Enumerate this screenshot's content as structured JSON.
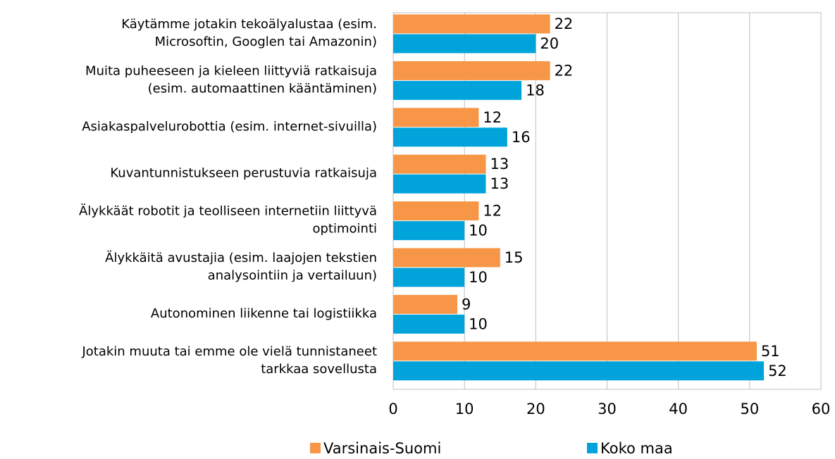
{
  "chart_data": {
    "type": "bar",
    "orientation": "horizontal",
    "categories": [
      [
        "Käytämme jotakin tekoälyalustaa (esim.",
        "Microsoftin, Googlen tai Amazonin)"
      ],
      [
        "Muita puheeseen ja kieleen liittyviä ratkaisuja",
        "(esim. automaattinen kääntäminen)"
      ],
      [
        "Asiakaspalvelurobottia (esim. internet-sivuilla)"
      ],
      [
        "Kuvantunnistukseen perustuvia ratkaisuja"
      ],
      [
        "Älykkäät robotit ja teolliseen internetiin liittyvä",
        "optimointi"
      ],
      [
        "Älykkäitä avustajia (esim. laajojen tekstien",
        "analysointiin ja vertailuun)"
      ],
      [
        "Autonominen liikenne tai logistiikka"
      ],
      [
        "Jotakin muuta tai emme ole vielä tunnistaneet",
        "tarkkaa sovellusta"
      ]
    ],
    "series": [
      {
        "name": "Varsinais-Suomi",
        "color": "#f79646",
        "values": [
          22,
          22,
          12,
          13,
          12,
          15,
          9,
          51
        ]
      },
      {
        "name": "Koko maa",
        "color": "#00a3da",
        "values": [
          20,
          18,
          16,
          13,
          10,
          10,
          10,
          52
        ]
      }
    ],
    "xlim": [
      0,
      60
    ],
    "xticks": [
      0,
      10,
      20,
      30,
      40,
      50,
      60
    ],
    "grid": true,
    "legend": "bottom"
  }
}
